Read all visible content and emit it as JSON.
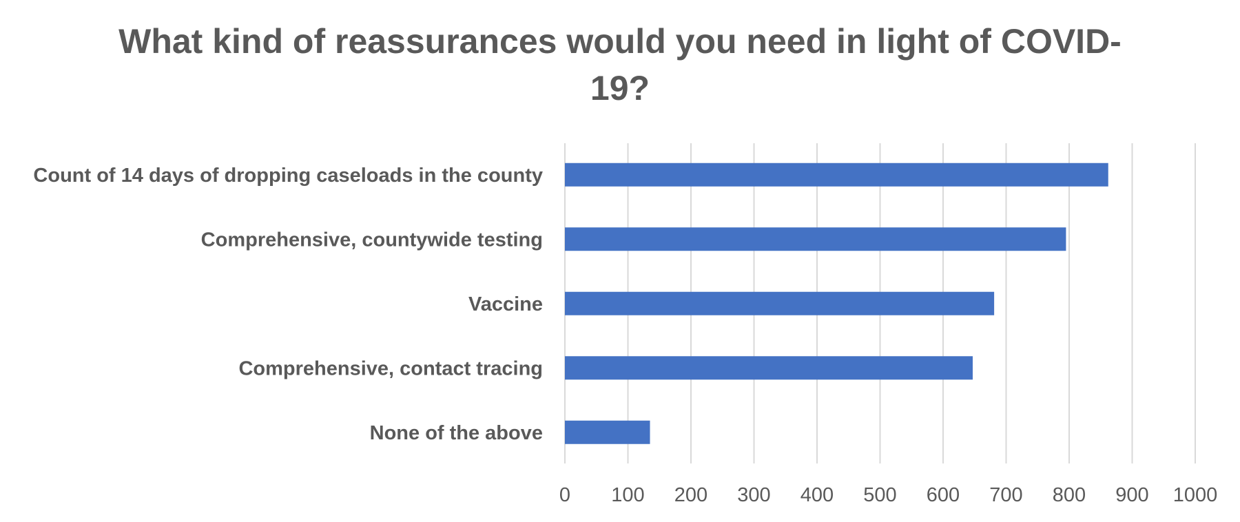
{
  "chart_data": {
    "type": "bar",
    "orientation": "horizontal",
    "title_lines": [
      "What kind of reassurances would you need in light of COVID-",
      "19?"
    ],
    "xlabel": "",
    "ylabel": "",
    "categories": [
      "Count of 14 days of dropping caseloads in the county",
      "Comprehensive, countywide testing",
      "Vaccine",
      "Comprehensive, contact tracing",
      "None of the above"
    ],
    "values": [
      862,
      795,
      681,
      647,
      135
    ],
    "xlim": [
      0,
      1000
    ],
    "ticks": [
      "0",
      "100",
      "200",
      "300",
      "400",
      "500",
      "600",
      "700",
      "800",
      "900",
      "1000"
    ],
    "grid": true,
    "legend": "none",
    "bar_color": "#4472c4"
  }
}
